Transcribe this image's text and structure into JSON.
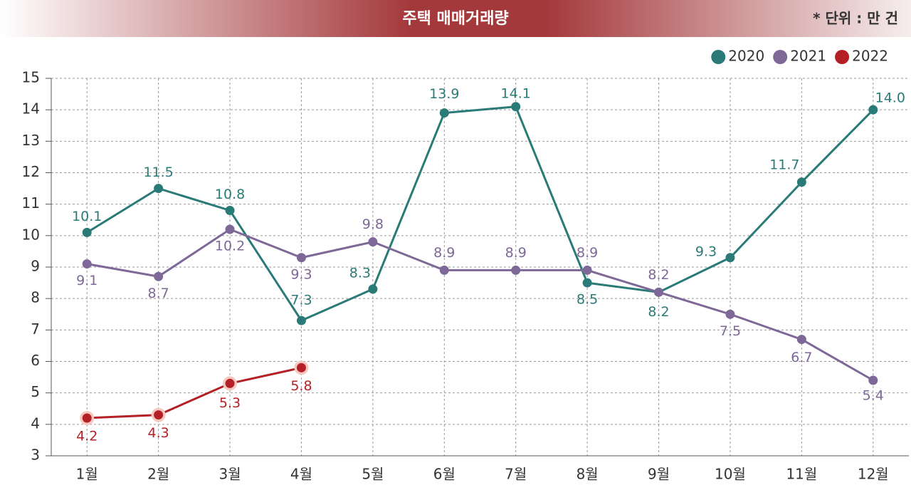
{
  "chart_data": {
    "type": "line",
    "title": "주택 매매거래량",
    "unit_note": "* 단위 : 만 건",
    "categories": [
      "1월",
      "2월",
      "3월",
      "4월",
      "5월",
      "6월",
      "7월",
      "8월",
      "9월",
      "10월",
      "11월",
      "12월"
    ],
    "series": [
      {
        "name": "2020",
        "color": "#2a7b78",
        "values": [
          10.1,
          11.5,
          10.8,
          7.3,
          8.3,
          13.9,
          14.1,
          8.5,
          8.2,
          9.3,
          11.7,
          14.0
        ],
        "value_labels": [
          "10.1",
          "11.5",
          "10.8",
          "7.3",
          "8.3",
          "13.9",
          "14.1",
          "8.5",
          "8.2",
          "9.3",
          "11.7",
          "14.0"
        ]
      },
      {
        "name": "2021",
        "color": "#7e6897",
        "values": [
          9.1,
          8.7,
          10.2,
          9.3,
          9.8,
          8.9,
          8.9,
          8.9,
          8.2,
          7.5,
          6.7,
          5.4
        ]
      },
      {
        "name": "2022",
        "color": "#b52026",
        "values": [
          4.2,
          4.3,
          5.3,
          5.8,
          null,
          null,
          null,
          null,
          null,
          null,
          null,
          null
        ]
      }
    ],
    "ylim": [
      3,
      15
    ],
    "yticks": [
      3,
      4,
      5,
      6,
      7,
      8,
      9,
      10,
      11,
      12,
      13,
      14,
      15
    ],
    "grid": true,
    "legend": "top-right"
  }
}
